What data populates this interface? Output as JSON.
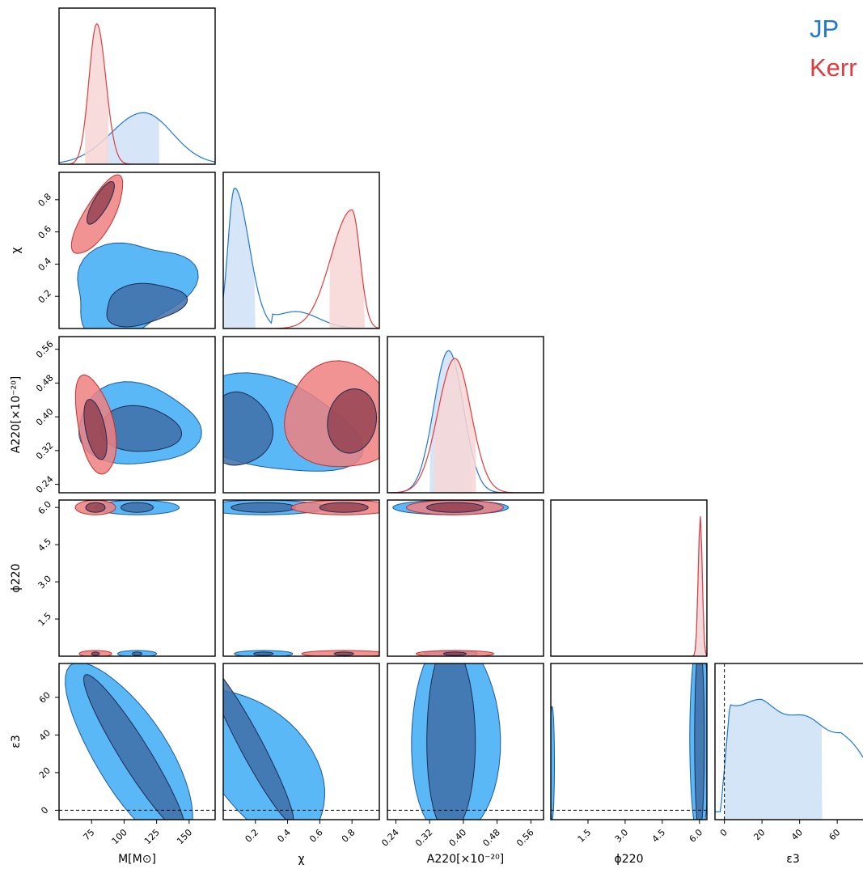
{
  "legend": {
    "jp": "JP",
    "kerr": "Kerr"
  },
  "colors": {
    "jp_line": "#1f77d4",
    "jp_fill_outer": "#5bb8f7",
    "jp_fill_inner": "#3f6fa8",
    "jp_band": "#cfe2f7",
    "kerr_line": "#e03c3c",
    "kerr_fill_outer": "#f08080",
    "kerr_fill_inner": "#8a3a4a",
    "kerr_band": "#f7d6d6"
  },
  "chart_data": {
    "type": "corner",
    "parameters": [
      {
        "key": "M",
        "label": "M[M⊙]",
        "range": [
          50,
          170
        ],
        "ticks": [
          75,
          100,
          125,
          150
        ],
        "tick_labels": [
          "75",
          "100",
          "125",
          "150"
        ]
      },
      {
        "key": "chi",
        "label": "χ",
        "range": [
          0,
          0.97
        ],
        "ticks": [
          0.2,
          0.4,
          0.6,
          0.8
        ],
        "tick_labels": [
          "0.2",
          "0.4",
          "0.6",
          "0.8"
        ]
      },
      {
        "key": "A220",
        "label": "A220[×10⁻²⁰]",
        "range": [
          0.22,
          0.59
        ],
        "ticks": [
          0.24,
          0.32,
          0.4,
          0.48,
          0.56
        ],
        "tick_labels": [
          "0.24",
          "0.32",
          "0.40",
          "0.48",
          "0.56"
        ]
      },
      {
        "key": "phi220",
        "label": "ϕ220",
        "range": [
          0,
          6.3
        ],
        "ticks": [
          1.5,
          3.0,
          4.5,
          6.0
        ],
        "tick_labels": [
          "1.5",
          "3.0",
          "4.5",
          "6.0"
        ]
      },
      {
        "key": "eps3",
        "label": "ε3",
        "range": [
          -5,
          78
        ],
        "ticks": [
          0,
          20,
          40,
          60
        ],
        "tick_labels": [
          "0",
          "20",
          "40",
          "60"
        ]
      }
    ],
    "series": [
      {
        "name": "JP",
        "marginals": {
          "M": {
            "mode": 115,
            "credible_interval": [
              86,
              127
            ]
          },
          "chi": {
            "mode": 0.07,
            "credible_interval": [
              0.0,
              0.2
            ]
          },
          "A220": {
            "mode": 0.365,
            "credible_interval": [
              0.32,
              0.42
            ]
          },
          "phi220": {
            "mode": 6.0,
            "credible_interval": [
              5.7,
              6.3
            ]
          },
          "eps3": {
            "mode": 20,
            "credible_interval": [
              0,
              52
            ]
          }
        }
      },
      {
        "name": "Kerr",
        "marginals": {
          "M": {
            "mode": 79,
            "credible_interval": [
              70,
              88
            ]
          },
          "chi": {
            "mode": 0.8,
            "credible_interval": [
              0.66,
              0.88
            ]
          },
          "A220": {
            "mode": 0.38,
            "credible_interval": [
              0.33,
              0.43
            ]
          },
          "phi220": {
            "mode": 6.0,
            "credible_interval": [
              5.7,
              6.3
            ]
          }
        }
      }
    ],
    "reference_line": {
      "parameter": "eps3",
      "value": 0
    }
  }
}
